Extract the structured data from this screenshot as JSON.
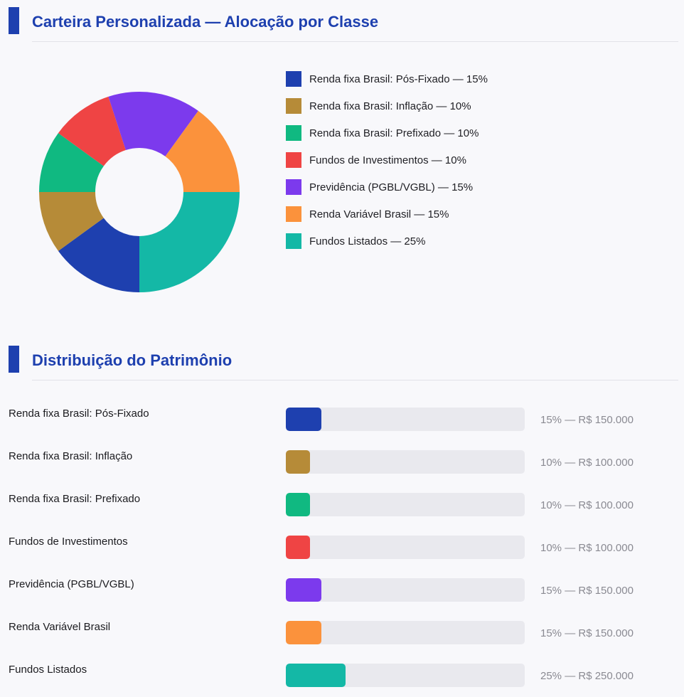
{
  "section1": {
    "title": "Carteira Personalizada — Alocação por Classe"
  },
  "section2": {
    "title": "Distribuição do Patrimônio"
  },
  "colors": {
    "accent": "#1e40af",
    "track": "#e9e9ee"
  },
  "legend": [
    {
      "label": "Renda fixa Brasil: Pós-Fixado — 15%"
    },
    {
      "label": "Renda fixa Brasil: Inflação — 10%"
    },
    {
      "label": "Renda fixa Brasil: Prefixado — 10%"
    },
    {
      "label": "Fundos de Investimentos — 10%"
    },
    {
      "label": "Previdência (PGBL/VGBL) — 15%"
    },
    {
      "label": "Renda Variável Brasil — 15%"
    },
    {
      "label": "Fundos Listados — 25%"
    }
  ],
  "distribution": [
    {
      "label": "Renda fixa Brasil: Pós-Fixado",
      "value_text": "15% — R$ 150.000"
    },
    {
      "label": "Renda fixa Brasil: Inflação",
      "value_text": "10% — R$ 100.000"
    },
    {
      "label": "Renda fixa Brasil: Prefixado",
      "value_text": "10% — R$ 100.000"
    },
    {
      "label": "Fundos de Investimentos",
      "value_text": "10% — R$ 100.000"
    },
    {
      "label": "Previdência (PGBL/VGBL)",
      "value_text": "15% — R$ 150.000"
    },
    {
      "label": "Renda Variável Brasil",
      "value_text": "15% — R$ 150.000"
    },
    {
      "label": "Fundos Listados",
      "value_text": "25% — R$ 250.000"
    }
  ],
  "chart_data": [
    {
      "type": "pie",
      "variant": "donut",
      "title": "Carteira Personalizada — Alocação por Classe",
      "start_angle_deg": 90,
      "direction": "clockwise",
      "legend_position": "right",
      "categories": [
        "Renda fixa Brasil: Pós-Fixado",
        "Renda fixa Brasil: Inflação",
        "Renda fixa Brasil: Prefixado",
        "Fundos de Investimentos",
        "Previdência (PGBL/VGBL)",
        "Renda Variável Brasil",
        "Fundos Listados"
      ],
      "values": [
        15,
        10,
        10,
        10,
        15,
        15,
        25
      ],
      "unit": "%",
      "colors": [
        "#1e40af",
        "#b68b38",
        "#10b981",
        "#ef4444",
        "#7c3aed",
        "#fb923c",
        "#14b8a6"
      ]
    },
    {
      "type": "bar",
      "orientation": "horizontal",
      "title": "Distribuição do Patrimônio",
      "categories": [
        "Renda fixa Brasil: Pós-Fixado",
        "Renda fixa Brasil: Inflação",
        "Renda fixa Brasil: Prefixado",
        "Fundos de Investimentos",
        "Previdência (PGBL/VGBL)",
        "Renda Variável Brasil",
        "Fundos Listados"
      ],
      "values": [
        15,
        10,
        10,
        10,
        15,
        15,
        25
      ],
      "amounts": [
        150000,
        100000,
        100000,
        100000,
        150000,
        150000,
        250000
      ],
      "unit": "%",
      "xlim": [
        0,
        100
      ],
      "colors": [
        "#1e40af",
        "#b68b38",
        "#10b981",
        "#ef4444",
        "#7c3aed",
        "#fb923c",
        "#14b8a6"
      ]
    }
  ]
}
